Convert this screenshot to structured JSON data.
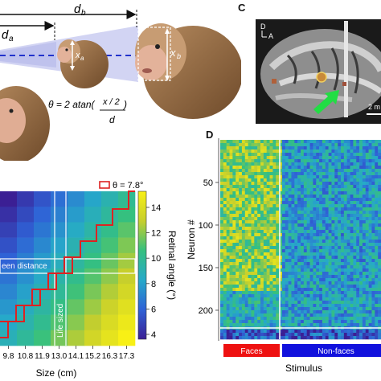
{
  "panel_b": {
    "label_d_b": "d",
    "label_d_b_sub": "b",
    "label_d_a": "d",
    "label_d_a_sub": "a",
    "label_x_a": "x",
    "label_x_a_sub": "a",
    "label_x_b": "x",
    "label_x_b_sub": "b",
    "formula_prefix": "θ = 2 atan(",
    "formula_num": "x / 2",
    "formula_close": ")",
    "formula_den": "d"
  },
  "panel_c": {
    "letter": "C",
    "orient_d": "D",
    "orient_a": "A",
    "scalebar": "2 m"
  },
  "panel_heatmap": {
    "legend_label": "θ = 7.8°",
    "screen_distance_label": "een distance",
    "life_sized_label": "Life sized",
    "xlabel": "Size (cm)",
    "cbar_label": "Retinal angle (°)",
    "cbar_ticks": [
      "14",
      "12",
      "10",
      "8",
      "6",
      "4"
    ],
    "xticks": [
      "9.8",
      "10.8",
      "11.9",
      "13.0",
      "14.1",
      "15.2",
      "16.3",
      "17.3"
    ]
  },
  "panel_d": {
    "letter": "D",
    "ylabel": "Neuron #",
    "yticks": [
      "50",
      "100",
      "150",
      "200"
    ],
    "xlabel": "Stimulus",
    "faces_label": "Faces",
    "nonfaces_label": "Non-faces",
    "faces_color": "#ee1111",
    "nonfaces_color": "#1111dd"
  },
  "chart_data": [
    {
      "type": "heatmap",
      "xlabel": "Size (cm)",
      "x_ticks": [
        9.8,
        10.8,
        11.9,
        13.0,
        14.1,
        15.2,
        16.3,
        17.3
      ],
      "colorbar_label": "Retinal angle (°)",
      "colorbar_range": [
        4,
        15
      ],
      "colorbar_ticks": [
        4,
        6,
        8,
        10,
        12,
        14
      ],
      "highlight_contour": "θ = 7.8°",
      "annotations": [
        "een distance",
        "Life sized"
      ]
    },
    {
      "type": "heatmap",
      "ylabel": "Neuron #",
      "y_ticks": [
        50,
        100,
        150,
        200
      ],
      "xlabel": "Stimulus",
      "categories": [
        "Faces",
        "Non-faces"
      ]
    }
  ]
}
